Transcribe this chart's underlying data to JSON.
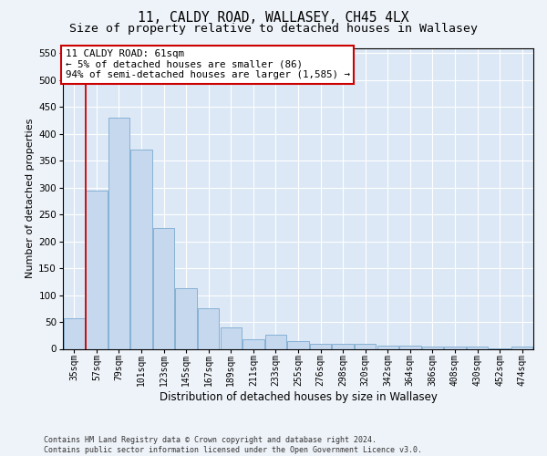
{
  "title": "11, CALDY ROAD, WALLASEY, CH45 4LX",
  "subtitle": "Size of property relative to detached houses in Wallasey",
  "xlabel": "Distribution of detached houses by size in Wallasey",
  "ylabel": "Number of detached properties",
  "categories": [
    "35sqm",
    "57sqm",
    "79sqm",
    "101sqm",
    "123sqm",
    "145sqm",
    "167sqm",
    "189sqm",
    "211sqm",
    "233sqm",
    "255sqm",
    "276sqm",
    "298sqm",
    "320sqm",
    "342sqm",
    "364sqm",
    "386sqm",
    "408sqm",
    "430sqm",
    "452sqm",
    "474sqm"
  ],
  "values": [
    57,
    295,
    430,
    370,
    225,
    113,
    76,
    40,
    17,
    27,
    15,
    10,
    10,
    10,
    6,
    6,
    5,
    5,
    5,
    1,
    4
  ],
  "bar_color": "#c5d8ee",
  "bar_edge_color": "#7aaad0",
  "vline_color": "#cc0000",
  "vline_x": 0.5,
  "annotation_line1": "11 CALDY ROAD: 61sqm",
  "annotation_line2": "← 5% of detached houses are smaller (86)",
  "annotation_line3": "94% of semi-detached houses are larger (1,585) →",
  "annotation_box_facecolor": "#ffffff",
  "annotation_box_edgecolor": "#cc0000",
  "ylim": [
    0,
    560
  ],
  "yticks": [
    0,
    50,
    100,
    150,
    200,
    250,
    300,
    350,
    400,
    450,
    500,
    550
  ],
  "footer_line1": "Contains HM Land Registry data © Crown copyright and database right 2024.",
  "footer_line2": "Contains public sector information licensed under the Open Government Licence v3.0.",
  "fig_facecolor": "#eef3f9",
  "ax_facecolor": "#dce8f5",
  "grid_color": "#ffffff",
  "title_fontsize": 10.5,
  "subtitle_fontsize": 9.5,
  "tick_fontsize": 7,
  "ylabel_fontsize": 8,
  "xlabel_fontsize": 8.5,
  "annotation_fontsize": 7.8
}
